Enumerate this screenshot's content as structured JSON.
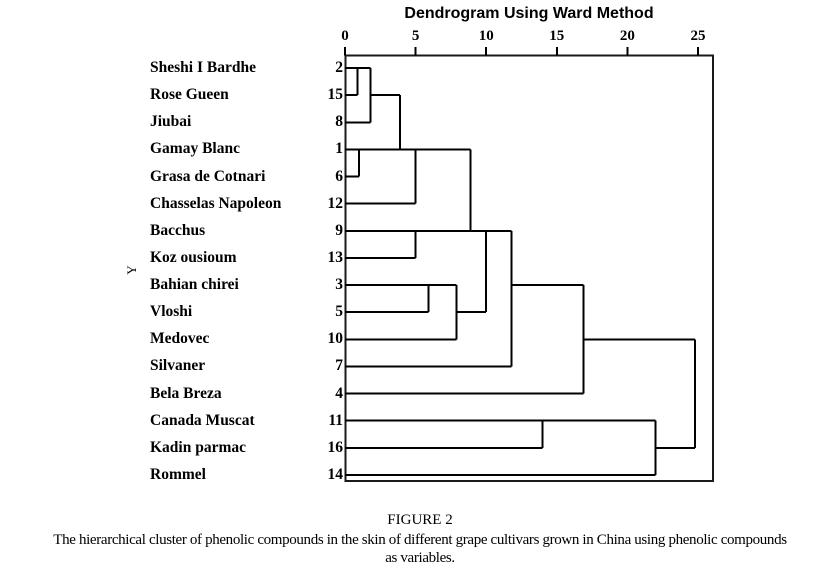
{
  "caption": {
    "label": "FIGURE 2",
    "lines": [
      "The hierarchical cluster of phenolic compounds in the skin of different grape cultivars grown in China using phenolic compounds",
      "as variables."
    ]
  },
  "chart_data": {
    "type": "dendrogram",
    "title": "Dendrogram Using Ward Method",
    "method": "Ward",
    "orientation": "horizontal",
    "ylabel": "Y",
    "xlim": [
      0,
      25
    ],
    "x_ticks": [
      0,
      5,
      10,
      15,
      20,
      25
    ],
    "grid": false,
    "leaves": [
      {
        "label": "Sheshi I Bardhe",
        "num": "2"
      },
      {
        "label": "Rose Gueen",
        "num": "15"
      },
      {
        "label": "Jiubai",
        "num": "8"
      },
      {
        "label": "Gamay Blanc",
        "num": "1"
      },
      {
        "label": "Grasa de Cotnari",
        "num": "6"
      },
      {
        "label": "Chasselas Napoleon",
        "num": "12"
      },
      {
        "label": "Bacchus",
        "num": "9"
      },
      {
        "label": "Koz ousioum",
        "num": "13"
      },
      {
        "label": "Bahian chirei",
        "num": "3"
      },
      {
        "label": "Vloshi",
        "num": "5"
      },
      {
        "label": "Medovec",
        "num": "10"
      },
      {
        "label": "Silvaner",
        "num": "7"
      },
      {
        "label": "Bela Breza",
        "num": "4"
      },
      {
        "label": "Canada Muscat",
        "num": "11"
      },
      {
        "label": "Kadin parmac",
        "num": "16"
      },
      {
        "label": "Rommel",
        "num": "14"
      }
    ],
    "merges": [
      {
        "join": [
          "Sheshi I Bardhe (2)",
          "Rose Gueen (15)"
        ],
        "distance": 0.9
      },
      {
        "join": [
          "(2,15)",
          "Jiubai (8)"
        ],
        "distance": 1.8
      },
      {
        "join": [
          "Gamay Blanc (1)",
          "Grasa de Cotnari (6)"
        ],
        "distance": 1.0
      },
      {
        "join": [
          "(2,15,8)",
          "(1,6)"
        ],
        "distance": 3.9
      },
      {
        "join": [
          "(2,15,8,1,6)",
          "Chasselas Napoleon (12)"
        ],
        "distance": 5.0
      },
      {
        "join": [
          "Bacchus (9)",
          "Koz ousioum (13)"
        ],
        "distance": 5.0
      },
      {
        "join": [
          "(2,15,8,1,6,12)",
          "(9,13)"
        ],
        "distance": 8.9
      },
      {
        "join": [
          "Bahian chirei (3)",
          "Vloshi (5)"
        ],
        "distance": 5.9
      },
      {
        "join": [
          "(3,5)",
          "Medovec (10)"
        ],
        "distance": 7.9
      },
      {
        "join": [
          "(2,15,8,1,6,12,9,13)",
          "(3,5,10)"
        ],
        "distance": 10.0
      },
      {
        "join": [
          "(2,15,8,1,6,12,9,13,3,5,10)",
          "Silvaner (7)"
        ],
        "distance": 11.8
      },
      {
        "join": [
          "(2,15,8,1,6,12,9,13,3,5,10,7)",
          "Bela Breza (4)"
        ],
        "distance": 16.9
      },
      {
        "join": [
          "Canada Muscat (11)",
          "Kadin parmac (16)"
        ],
        "distance": 14.0
      },
      {
        "join": [
          "(11,16)",
          "Rommel (14)"
        ],
        "distance": 22.0
      },
      {
        "join": [
          "(2,15,8,1,6,12,9,13,3,5,10,7,4)",
          "(11,16,14)"
        ],
        "distance": 24.8
      }
    ],
    "segments": {
      "h": [
        {
          "row": 0,
          "x1": 0,
          "x2": 1.8
        },
        {
          "row": 1,
          "x1": 0,
          "x2": 0.9
        },
        {
          "row": 1,
          "x1": 1.8,
          "x2": 3.9
        },
        {
          "row": 2,
          "x1": 0,
          "x2": 1.8
        },
        {
          "row": 3,
          "x1": 0,
          "x2": 8.9
        },
        {
          "row": 4,
          "x1": 0,
          "x2": 1.0
        },
        {
          "row": 5,
          "x1": 0,
          "x2": 5.0
        },
        {
          "row": 6,
          "x1": 0,
          "x2": 11.8
        },
        {
          "row": 7,
          "x1": 0,
          "x2": 5.0
        },
        {
          "row": 8,
          "x1": 0,
          "x2": 7.9
        },
        {
          "row": 8,
          "x1": 11.8,
          "x2": 16.9
        },
        {
          "row": 9,
          "x1": 0,
          "x2": 5.9
        },
        {
          "row": 9,
          "x1": 7.9,
          "x2": 10.0
        },
        {
          "row": 10,
          "x1": 0,
          "x2": 7.9
        },
        {
          "row": 10,
          "x1": 16.9,
          "x2": 24.8
        },
        {
          "row": 11,
          "x1": 0,
          "x2": 11.8
        },
        {
          "row": 12,
          "x1": 0,
          "x2": 16.9
        },
        {
          "row": 13,
          "x1": 0,
          "x2": 22.0
        },
        {
          "row": 14,
          "x1": 0,
          "x2": 14.0
        },
        {
          "row": 14,
          "x1": 22.0,
          "x2": 24.8
        },
        {
          "row": 15,
          "x1": 0,
          "x2": 22.0
        }
      ],
      "v": [
        {
          "x": 0.9,
          "row1": 0,
          "row2": 1
        },
        {
          "x": 1.8,
          "row1": 0,
          "row2": 2
        },
        {
          "x": 1.0,
          "row1": 3,
          "row2": 4
        },
        {
          "x": 3.9,
          "row1": 1,
          "row2": 3
        },
        {
          "x": 5.0,
          "row1": 3,
          "row2": 5
        },
        {
          "x": 5.0,
          "row1": 6,
          "row2": 7
        },
        {
          "x": 8.9,
          "row1": 3,
          "row2": 6
        },
        {
          "x": 5.9,
          "row1": 8,
          "row2": 9
        },
        {
          "x": 7.9,
          "row1": 8,
          "row2": 10
        },
        {
          "x": 10.0,
          "row1": 6,
          "row2": 9
        },
        {
          "x": 11.8,
          "row1": 6,
          "row2": 11
        },
        {
          "x": 16.9,
          "row1": 8,
          "row2": 12
        },
        {
          "x": 14.0,
          "row1": 13,
          "row2": 14
        },
        {
          "x": 22.0,
          "row1": 13,
          "row2": 15
        },
        {
          "x": 24.8,
          "row1": 10,
          "row2": 14
        }
      ]
    },
    "line_color": "#000000",
    "frame_color": "#1a1a1a"
  }
}
